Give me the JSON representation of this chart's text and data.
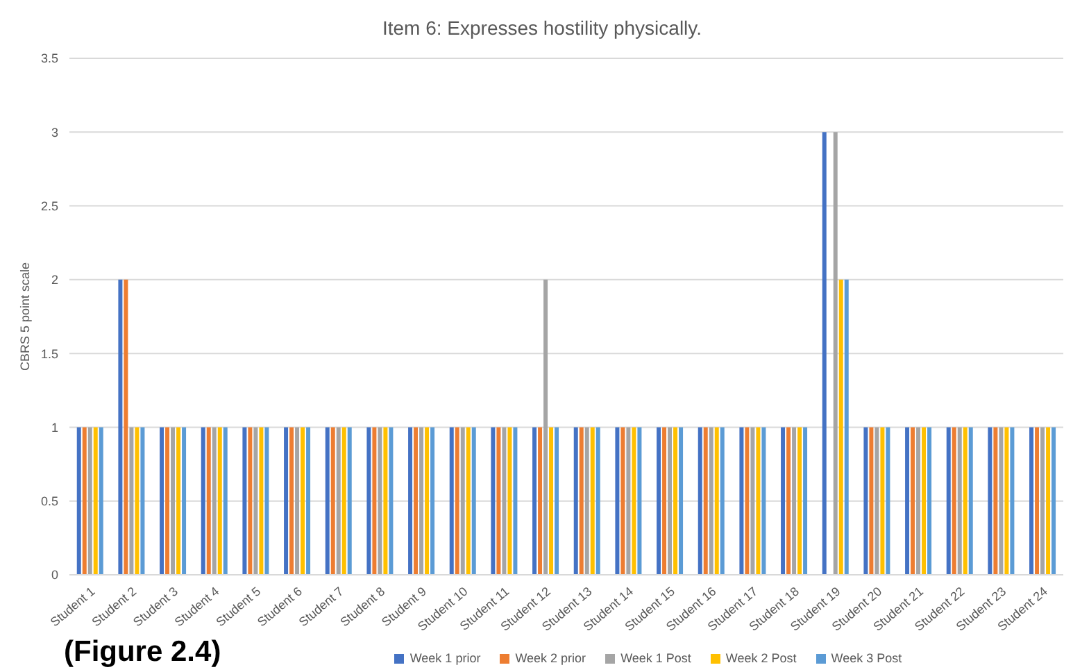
{
  "chart_data": {
    "type": "bar",
    "title": "Item 6: Expresses hostility physically.",
    "ylabel": "CBRS 5 point scale",
    "categories": [
      "Student 1",
      "Student 2",
      "Student 3",
      "Student 4",
      "Student 5",
      "Student 6",
      "Student 7",
      "Student 8",
      "Student 9",
      "Student 10",
      "Student 11",
      "Student 12",
      "Student 13",
      "Student 14",
      "Student 15",
      "Student 16",
      "Student 17",
      "Student 18",
      "Student 19",
      "Student 20",
      "Student 21",
      "Student 22",
      "Student 23",
      "Student 24"
    ],
    "series": [
      {
        "name": "Week 1 prior",
        "color": "#4472c4",
        "values": [
          1,
          2,
          1,
          1,
          1,
          1,
          1,
          1,
          1,
          1,
          1,
          1,
          1,
          1,
          1,
          1,
          1,
          1,
          3,
          1,
          1,
          1,
          1,
          1
        ]
      },
      {
        "name": "Week 2 prior",
        "color": "#ed7d31",
        "values": [
          1,
          2,
          1,
          1,
          1,
          1,
          1,
          1,
          1,
          1,
          1,
          1,
          1,
          1,
          1,
          1,
          1,
          1,
          0,
          1,
          1,
          1,
          1,
          1
        ]
      },
      {
        "name": "Week 1 Post",
        "color": "#a5a5a5",
        "values": [
          1,
          1,
          1,
          1,
          1,
          1,
          1,
          1,
          1,
          1,
          1,
          2,
          1,
          1,
          1,
          1,
          1,
          1,
          3,
          1,
          1,
          1,
          1,
          1
        ]
      },
      {
        "name": "Week 2 Post",
        "color": "#ffc000",
        "values": [
          1,
          1,
          1,
          1,
          1,
          1,
          1,
          1,
          1,
          1,
          1,
          1,
          1,
          1,
          1,
          1,
          1,
          1,
          2,
          1,
          1,
          1,
          1,
          1
        ]
      },
      {
        "name": "Week 3 Post",
        "color": "#5b9bd5",
        "values": [
          1,
          1,
          1,
          1,
          1,
          1,
          1,
          1,
          1,
          1,
          1,
          1,
          1,
          1,
          1,
          1,
          1,
          1,
          2,
          1,
          1,
          1,
          1,
          1
        ]
      }
    ],
    "ylim": [
      0,
      3.5
    ],
    "yticks": [
      0,
      0.5,
      1,
      1.5,
      2,
      2.5,
      3,
      3.5
    ],
    "grid": "y",
    "legend": "bottom",
    "annotations": [
      "(Figure 2.4)"
    ]
  }
}
